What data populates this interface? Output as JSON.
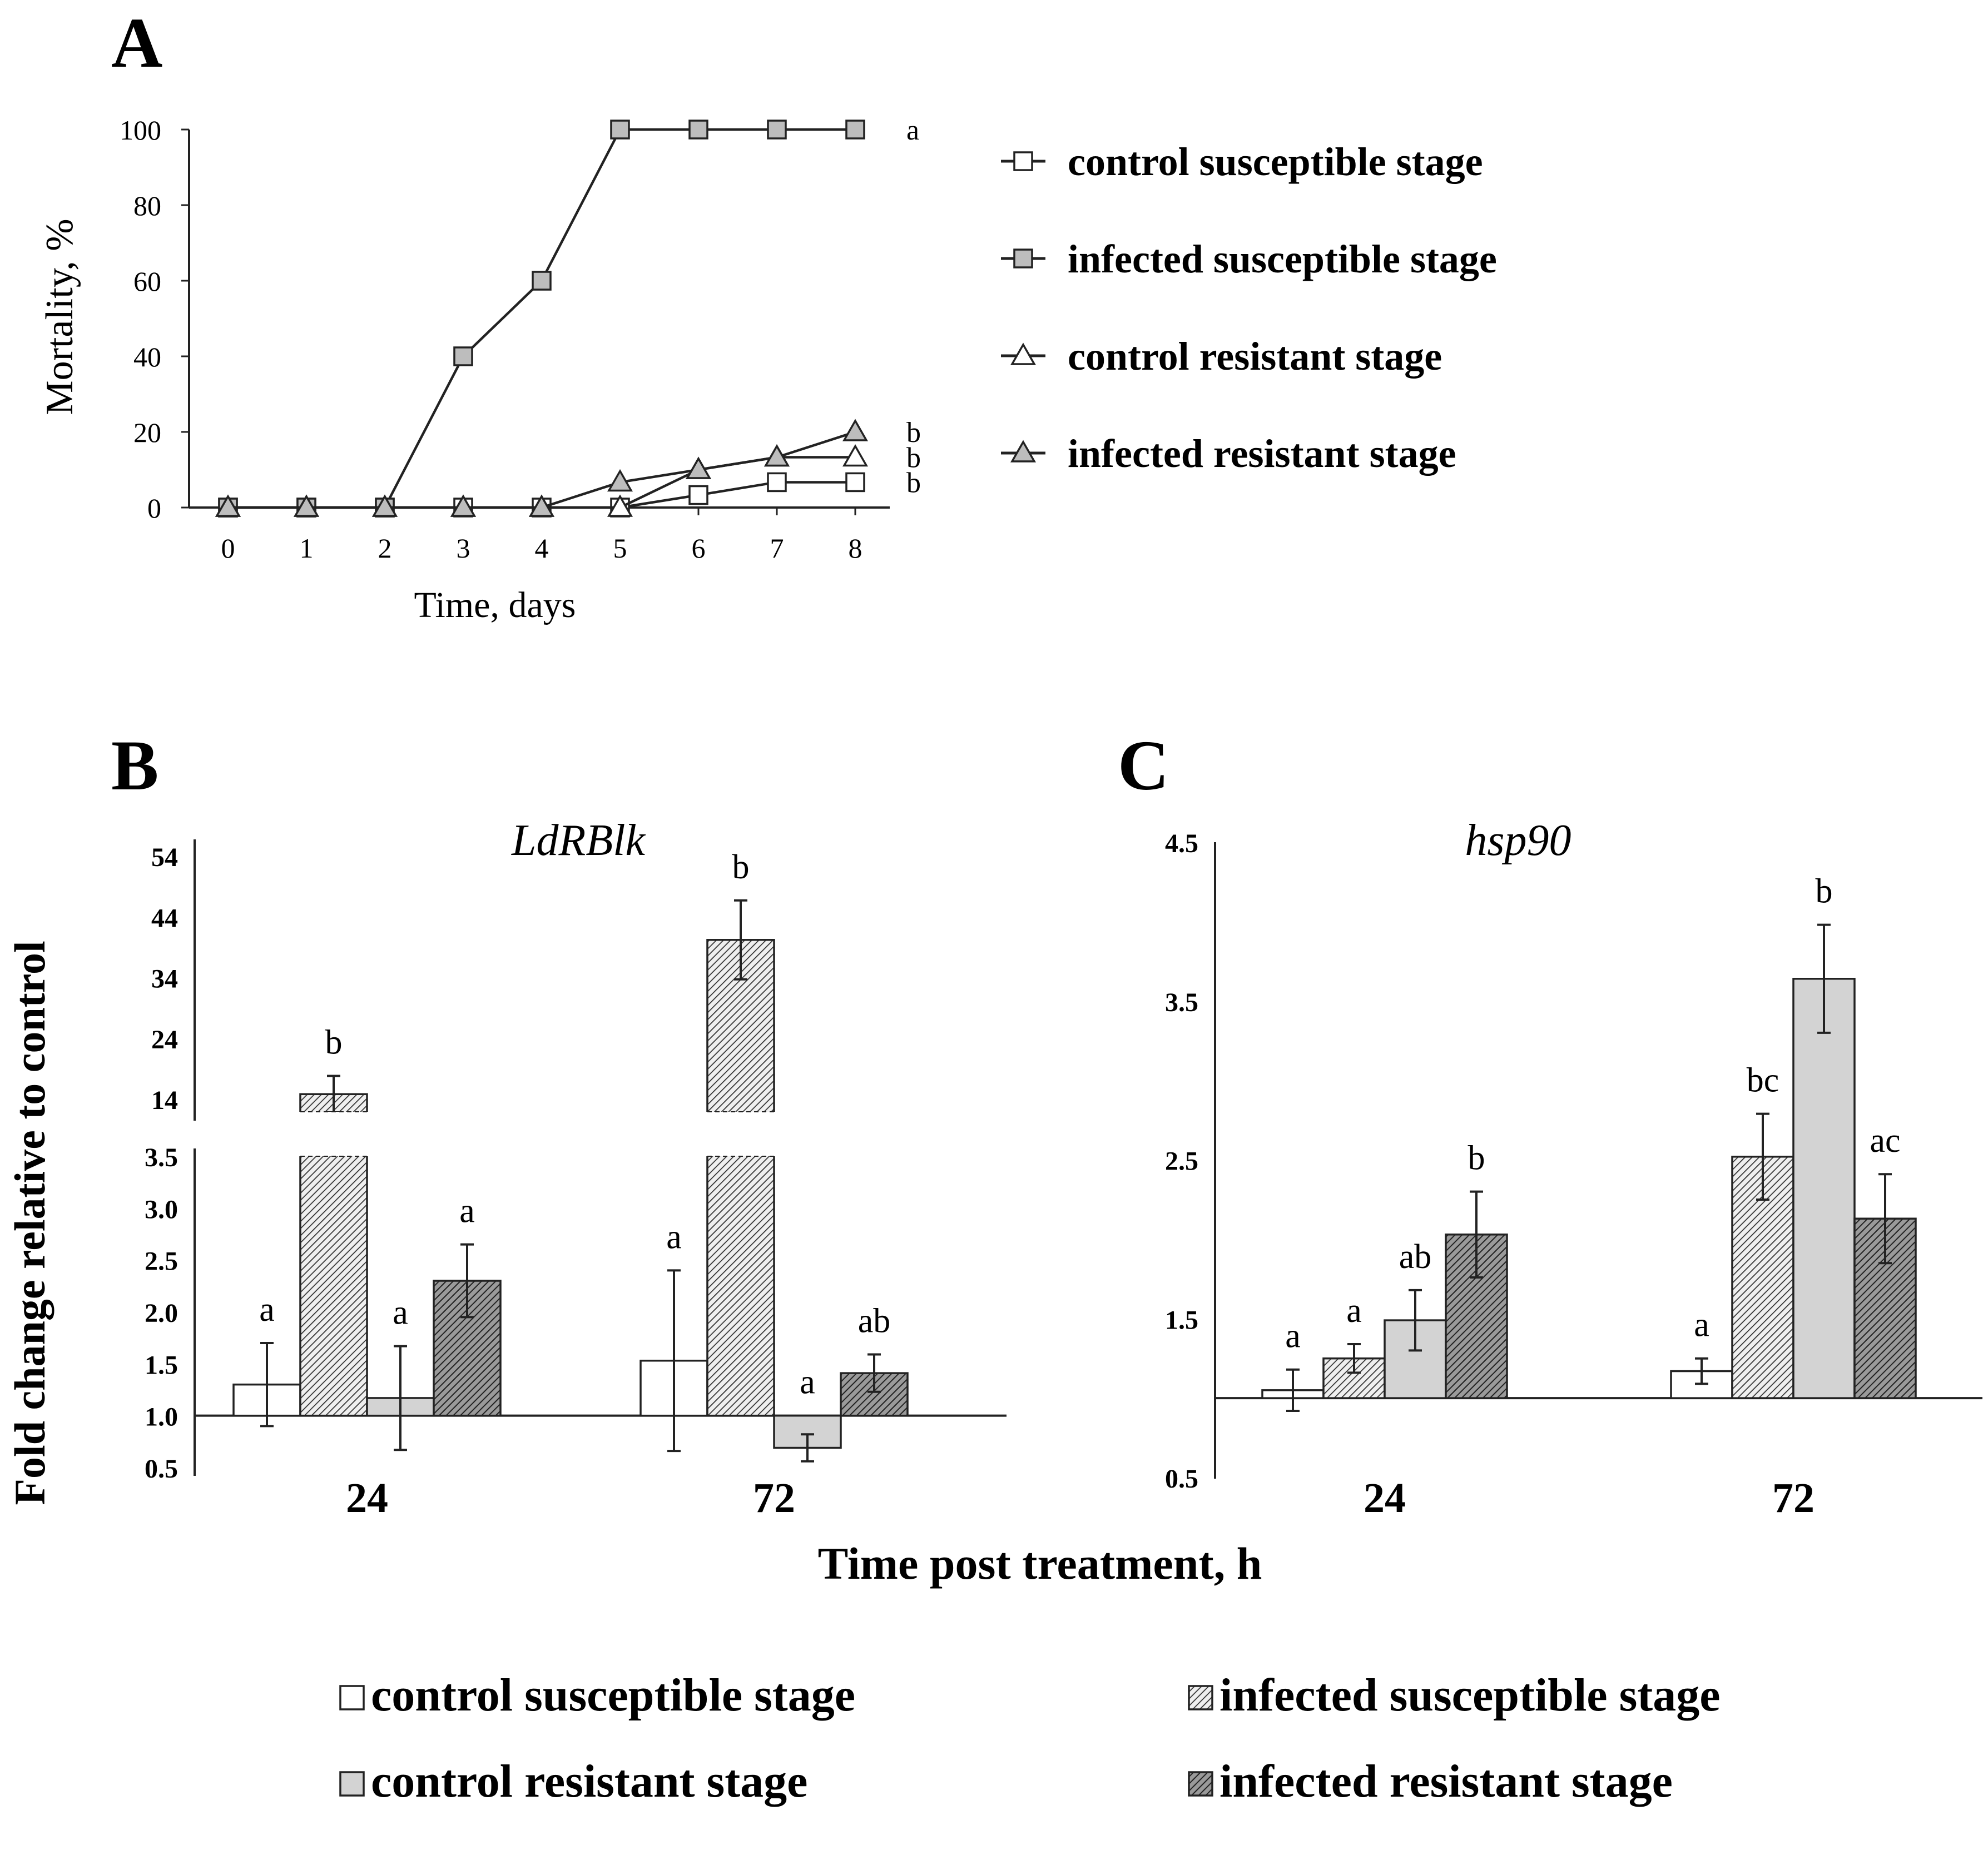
{
  "figure": {
    "panel_labels": [
      "A",
      "B",
      "C"
    ],
    "shared_ylabel": "Fold change relative to control",
    "shared_xlabel": "Time post treatment, h"
  },
  "chart_data": [
    {
      "id": "A",
      "type": "line",
      "title": "",
      "xlabel": "Time, days",
      "ylabel": "Mortality, %",
      "x": [
        0,
        1,
        2,
        3,
        4,
        5,
        6,
        7,
        8
      ],
      "ylim": [
        0,
        100
      ],
      "yticks": [
        0,
        20,
        40,
        60,
        80,
        100
      ],
      "grid": false,
      "series": [
        {
          "name": "control susceptible stage",
          "marker": "square",
          "fill": "#ffffff",
          "values": [
            0,
            0,
            0,
            0,
            0,
            0,
            3.3,
            6.7,
            6.7
          ]
        },
        {
          "name": "infected susceptible stage",
          "marker": "square",
          "fill": "#bdbdbd",
          "values": [
            0,
            0,
            0,
            40,
            60,
            100,
            100,
            100,
            100
          ]
        },
        {
          "name": "control resistant stage",
          "marker": "triangle",
          "fill": "#ffffff",
          "values": [
            0,
            0,
            0,
            0,
            0,
            0,
            10,
            13.3,
            13.3
          ]
        },
        {
          "name": "infected resistant stage",
          "marker": "triangle",
          "fill": "#bdbdbd",
          "values": [
            0,
            0,
            0,
            0,
            0,
            6.7,
            10,
            13.3,
            20
          ]
        }
      ],
      "end_labels": [
        {
          "text": "a",
          "y": 100
        },
        {
          "text": "b",
          "y": 20
        },
        {
          "text": "b",
          "y": 13.3
        },
        {
          "text": "b",
          "y": 6.7
        }
      ],
      "legend_position": "right"
    },
    {
      "id": "B",
      "type": "bar",
      "title": "LdRBlk",
      "categories": [
        "24",
        "72"
      ],
      "baseline": 1.0,
      "axis_break": true,
      "yticks_lower": [
        "0.5",
        "1.0",
        "1.5",
        "2.0",
        "2.5",
        "3.0",
        "3.5"
      ],
      "yticks_upper": [
        "14",
        "24",
        "34",
        "44",
        "54"
      ],
      "series": [
        {
          "name": "control susceptible stage",
          "values": [
            1.3,
            1.53
          ],
          "errors": [
            0.4,
            0.87
          ],
          "letters": [
            "a",
            "a"
          ]
        },
        {
          "name": "infected susceptible stage",
          "values": [
            14.8,
            40.2
          ],
          "errors": [
            3.0,
            6.5
          ],
          "letters": [
            "b",
            "b"
          ]
        },
        {
          "name": "control resistant stage",
          "values": [
            1.17,
            0.69
          ],
          "errors": [
            0.5,
            0.13
          ],
          "letters": [
            "a",
            "a"
          ]
        },
        {
          "name": "infected resistant stage",
          "values": [
            2.3,
            1.41
          ],
          "errors": [
            0.35,
            0.18
          ],
          "letters": [
            "a",
            "ab"
          ]
        }
      ]
    },
    {
      "id": "C",
      "type": "bar",
      "title": "hsp90",
      "categories": [
        "24",
        "72"
      ],
      "baseline": 1.0,
      "ylim": [
        0.5,
        4.5
      ],
      "yticks": [
        "0.5",
        "1.5",
        "2.5",
        "3.5",
        "4.5"
      ],
      "series": [
        {
          "name": "control susceptible stage",
          "values": [
            1.05,
            1.17
          ],
          "errors": [
            0.13,
            0.08
          ],
          "letters": [
            "a",
            "a"
          ]
        },
        {
          "name": "infected susceptible stage",
          "values": [
            1.25,
            2.52
          ],
          "errors": [
            0.09,
            0.27
          ],
          "letters": [
            "a",
            "bc"
          ]
        },
        {
          "name": "control resistant stage",
          "values": [
            1.49,
            3.64
          ],
          "errors": [
            0.19,
            0.34
          ],
          "letters": [
            "ab",
            "b"
          ]
        },
        {
          "name": "infected resistant stage",
          "values": [
            2.03,
            2.13
          ],
          "errors": [
            0.27,
            0.28
          ],
          "letters": [
            "b",
            "ac"
          ]
        }
      ]
    }
  ],
  "bar_legend": [
    {
      "label": "control susceptible stage",
      "style": "white"
    },
    {
      "label": "infected susceptible stage",
      "style": "hatch-light"
    },
    {
      "label": "control resistant stage",
      "style": "gray"
    },
    {
      "label": "infected resistant stage",
      "style": "hatch-dark"
    }
  ],
  "colors": {
    "stroke": "#222222",
    "light_gray": "#d3d3d3",
    "marker_gray": "#bdbdbd",
    "hatch_light_bg": "#efefef",
    "hatch_dark_bg": "#9a9a9a"
  }
}
